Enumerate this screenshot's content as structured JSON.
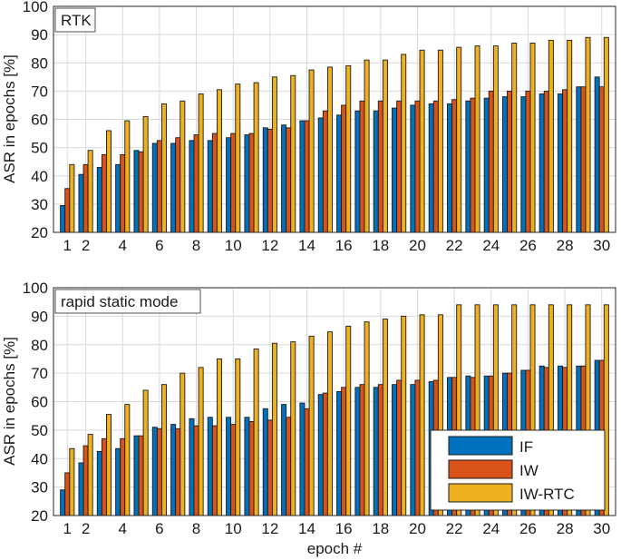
{
  "figure": {
    "xlabel": "epoch #"
  },
  "legend": {
    "items": [
      "IF",
      "IW",
      "IW-RTC"
    ],
    "colors": [
      "#0072BD",
      "#D95319",
      "#EDB120"
    ],
    "location": "bottom-right of lower panel"
  },
  "chart_data": [
    {
      "type": "bar",
      "title": "RTK",
      "ylabel": "ASR in epochs [%]",
      "xlabel": "",
      "ylim": [
        20,
        100
      ],
      "yticks": [
        20,
        30,
        40,
        50,
        60,
        70,
        80,
        90,
        100
      ],
      "xticks": [
        1,
        2,
        4,
        6,
        8,
        10,
        12,
        14,
        16,
        18,
        20,
        22,
        24,
        26,
        28,
        30
      ],
      "grid": true,
      "categories": [
        1,
        2,
        3,
        4,
        5,
        6,
        7,
        8,
        9,
        10,
        11,
        12,
        13,
        14,
        15,
        16,
        17,
        18,
        19,
        20,
        21,
        22,
        23,
        24,
        25,
        26,
        27,
        28,
        29,
        30
      ],
      "series": [
        {
          "name": "IF",
          "values": [
            29.5,
            40.5,
            43,
            44,
            49,
            51.5,
            51.5,
            52.5,
            52.5,
            53.5,
            54.5,
            57,
            58,
            59.5,
            60.5,
            61.5,
            63,
            63,
            64,
            65,
            65.5,
            65.5,
            66.5,
            67.5,
            68,
            68,
            69,
            69,
            71.5,
            75
          ]
        },
        {
          "name": "IW",
          "values": [
            35.5,
            44,
            47.5,
            47.5,
            48.5,
            52.5,
            53.5,
            54.5,
            55,
            55,
            55,
            56.5,
            57,
            59.5,
            63,
            65,
            66.5,
            66.5,
            66.5,
            66.5,
            66.5,
            67,
            67.5,
            70,
            70,
            70,
            70,
            70.5,
            71.5,
            71.5
          ]
        },
        {
          "name": "IW-RTC",
          "values": [
            44,
            49,
            56,
            59.5,
            61,
            65.5,
            66.5,
            69,
            70.5,
            72.5,
            73,
            75,
            75.5,
            77.5,
            78.5,
            79,
            81,
            81,
            83,
            84.5,
            84.5,
            85.5,
            86,
            86,
            87,
            87,
            88,
            88,
            89,
            89
          ]
        }
      ]
    },
    {
      "type": "bar",
      "title": "rapid static mode",
      "ylabel": "ASR in epochs [%]",
      "xlabel": "epoch #",
      "ylim": [
        20,
        100
      ],
      "yticks": [
        20,
        30,
        40,
        50,
        60,
        70,
        80,
        90,
        100
      ],
      "xticks": [
        1,
        2,
        4,
        6,
        8,
        10,
        12,
        14,
        16,
        18,
        20,
        22,
        24,
        26,
        28,
        30
      ],
      "grid": true,
      "categories": [
        1,
        2,
        3,
        4,
        5,
        6,
        7,
        8,
        9,
        10,
        11,
        12,
        13,
        14,
        15,
        16,
        17,
        18,
        19,
        20,
        21,
        22,
        23,
        24,
        25,
        26,
        27,
        28,
        29,
        30
      ],
      "series": [
        {
          "name": "IF",
          "values": [
            29,
            38.5,
            42.5,
            43.5,
            48,
            51,
            52,
            54,
            54.5,
            54.5,
            54.5,
            57.5,
            59,
            59.5,
            62.5,
            63.5,
            65,
            65,
            66,
            66,
            67,
            68.5,
            69,
            69,
            70,
            71,
            72.5,
            72.5,
            72.5,
            74.5
          ]
        },
        {
          "name": "IW",
          "values": [
            35,
            44.5,
            47,
            47,
            48,
            50.5,
            50.5,
            51.5,
            51.5,
            52,
            53,
            53.5,
            54.5,
            57.5,
            63,
            65,
            66,
            66,
            67.5,
            67.5,
            67.5,
            68.5,
            68.5,
            69,
            70,
            71,
            72,
            72,
            72.5,
            74.5
          ]
        },
        {
          "name": "IW-RTC",
          "values": [
            43.5,
            48.5,
            55.5,
            59,
            64,
            66,
            70,
            72,
            75,
            75,
            78.5,
            80.5,
            81,
            83,
            84.5,
            86.5,
            88,
            89,
            90,
            90.5,
            90.5,
            94,
            94,
            94,
            94,
            94,
            94,
            94,
            94,
            94
          ]
        }
      ]
    }
  ]
}
